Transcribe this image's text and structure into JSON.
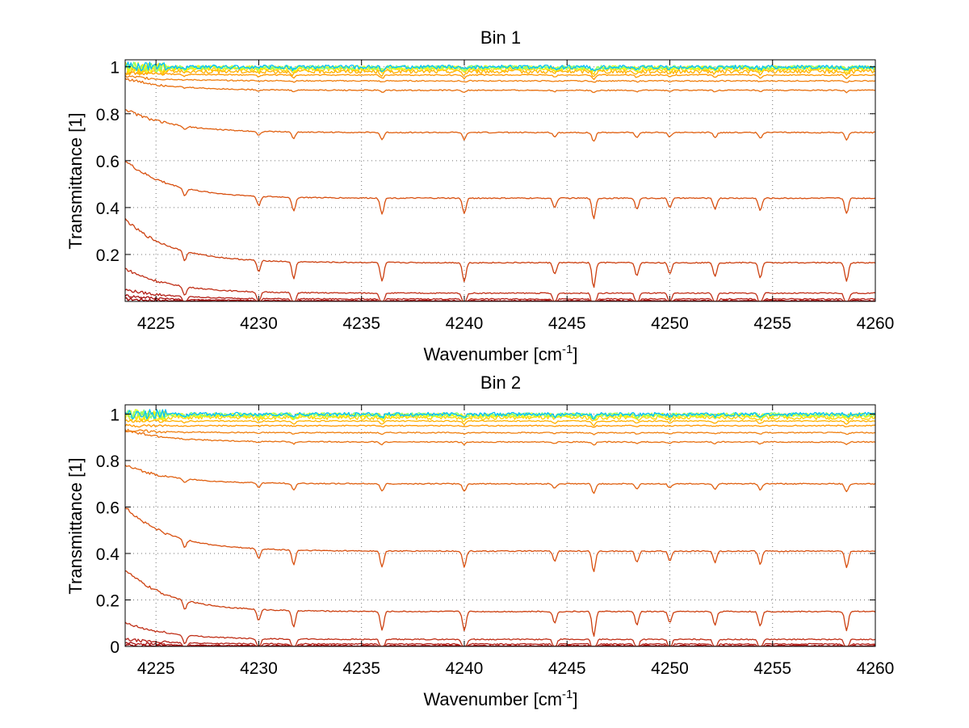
{
  "chart_data": [
    {
      "type": "line",
      "title": "Bin 1",
      "xlabel": "Wavenumber [cm",
      "xlabel_sup": "-1",
      "xlabel_end": "]",
      "ylabel": "Transmittance [1]",
      "xlim": [
        4223.5,
        4260
      ],
      "ylim": [
        0,
        1.03
      ],
      "xticks": [
        4225,
        4230,
        4235,
        4240,
        4245,
        4250,
        4255,
        4260
      ],
      "xtick_labels": [
        "4225",
        "4230",
        "4235",
        "4240",
        "4245",
        "4250",
        "4255",
        "4260"
      ],
      "yticks": [
        0.2,
        0.4,
        0.6,
        0.8,
        1
      ],
      "ytick_labels": [
        "0.2",
        "0.4",
        "0.6",
        "0.8",
        "1"
      ],
      "grid": true,
      "series": [
        {
          "color": "#00bfff",
          "start": 1.0,
          "level": 0.999
        },
        {
          "color": "#7fff7f",
          "start": 1.0,
          "level": 0.998
        },
        {
          "color": "#dfff20",
          "start": 1.0,
          "level": 0.997
        },
        {
          "color": "#ffee00",
          "start": 0.995,
          "level": 0.995
        },
        {
          "color": "#ffd000",
          "start": 0.99,
          "level": 0.99
        },
        {
          "color": "#ffb000",
          "start": 0.985,
          "level": 0.98
        },
        {
          "color": "#ff9800",
          "start": 0.975,
          "level": 0.965
        },
        {
          "color": "#f08010",
          "start": 0.96,
          "level": 0.94
        },
        {
          "color": "#e87010",
          "start": 0.95,
          "level": 0.9
        },
        {
          "color": "#e06010",
          "start": 0.82,
          "level": 0.72
        },
        {
          "color": "#d85010",
          "start": 0.6,
          "level": 0.44
        },
        {
          "color": "#cc4010",
          "start": 0.35,
          "level": 0.165
        },
        {
          "color": "#c03018",
          "start": 0.14,
          "level": 0.035
        },
        {
          "color": "#b42018",
          "start": 0.05,
          "level": 0.01
        },
        {
          "color": "#a81010",
          "start": 0.025,
          "level": 0.003
        },
        {
          "color": "#9a0000",
          "start": 0.01,
          "level": 0.0
        }
      ]
    },
    {
      "type": "line",
      "title": "Bin 2",
      "xlabel": "Wavenumber [cm",
      "xlabel_sup": "-1",
      "xlabel_end": "]",
      "ylabel": "Transmittance [1]",
      "xlim": [
        4223.5,
        4260
      ],
      "ylim": [
        0,
        1.04
      ],
      "xticks": [
        4225,
        4230,
        4235,
        4240,
        4245,
        4250,
        4255,
        4260
      ],
      "xtick_labels": [
        "4225",
        "4230",
        "4235",
        "4240",
        "4245",
        "4250",
        "4255",
        "4260"
      ],
      "yticks": [
        0,
        0.2,
        0.4,
        0.6,
        0.8,
        1
      ],
      "ytick_labels": [
        "0",
        "0.2",
        "0.4",
        "0.6",
        "0.8",
        "1"
      ],
      "grid": true,
      "series": [
        {
          "color": "#00bfff",
          "start": 1.0,
          "level": 0.999
        },
        {
          "color": "#7fff7f",
          "start": 1.0,
          "level": 0.998
        },
        {
          "color": "#dfff20",
          "start": 1.0,
          "level": 0.997
        },
        {
          "color": "#ffee00",
          "start": 0.995,
          "level": 0.993
        },
        {
          "color": "#ffd000",
          "start": 0.99,
          "level": 0.985
        },
        {
          "color": "#ffb000",
          "start": 0.97,
          "level": 0.97
        },
        {
          "color": "#ff9800",
          "start": 0.95,
          "level": 0.95
        },
        {
          "color": "#f08010",
          "start": 0.93,
          "level": 0.92
        },
        {
          "color": "#e87010",
          "start": 0.93,
          "level": 0.88
        },
        {
          "color": "#e06010",
          "start": 0.78,
          "level": 0.7
        },
        {
          "color": "#d85010",
          "start": 0.6,
          "level": 0.41
        },
        {
          "color": "#cc4010",
          "start": 0.33,
          "level": 0.15
        },
        {
          "color": "#c03018",
          "start": 0.1,
          "level": 0.03
        },
        {
          "color": "#b42018",
          "start": 0.03,
          "level": 0.01
        },
        {
          "color": "#a81010",
          "start": 0.015,
          "level": 0.003
        },
        {
          "color": "#9a0000",
          "start": 0.005,
          "level": 0.0
        }
      ]
    }
  ]
}
